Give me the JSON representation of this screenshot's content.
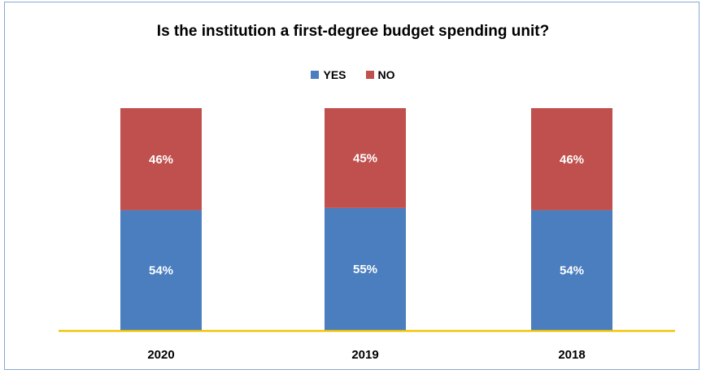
{
  "chart_data": {
    "type": "bar",
    "stacked": true,
    "title": "Is the institution a first-degree  budget spending unit?",
    "categories": [
      "2020",
      "2019",
      "2018"
    ],
    "series": [
      {
        "name": "YES",
        "values": [
          54,
          55,
          54
        ],
        "labels": [
          "54%",
          "55%",
          "54%"
        ],
        "color": "#4a7ebf"
      },
      {
        "name": "NO",
        "values": [
          46,
          45,
          46
        ],
        "labels": [
          "46%",
          "45%",
          "46%"
        ],
        "color": "#c0504d"
      }
    ],
    "ylim": [
      0,
      100
    ],
    "legend": "top-center",
    "grid": false,
    "axis_color": "#f2c300"
  }
}
